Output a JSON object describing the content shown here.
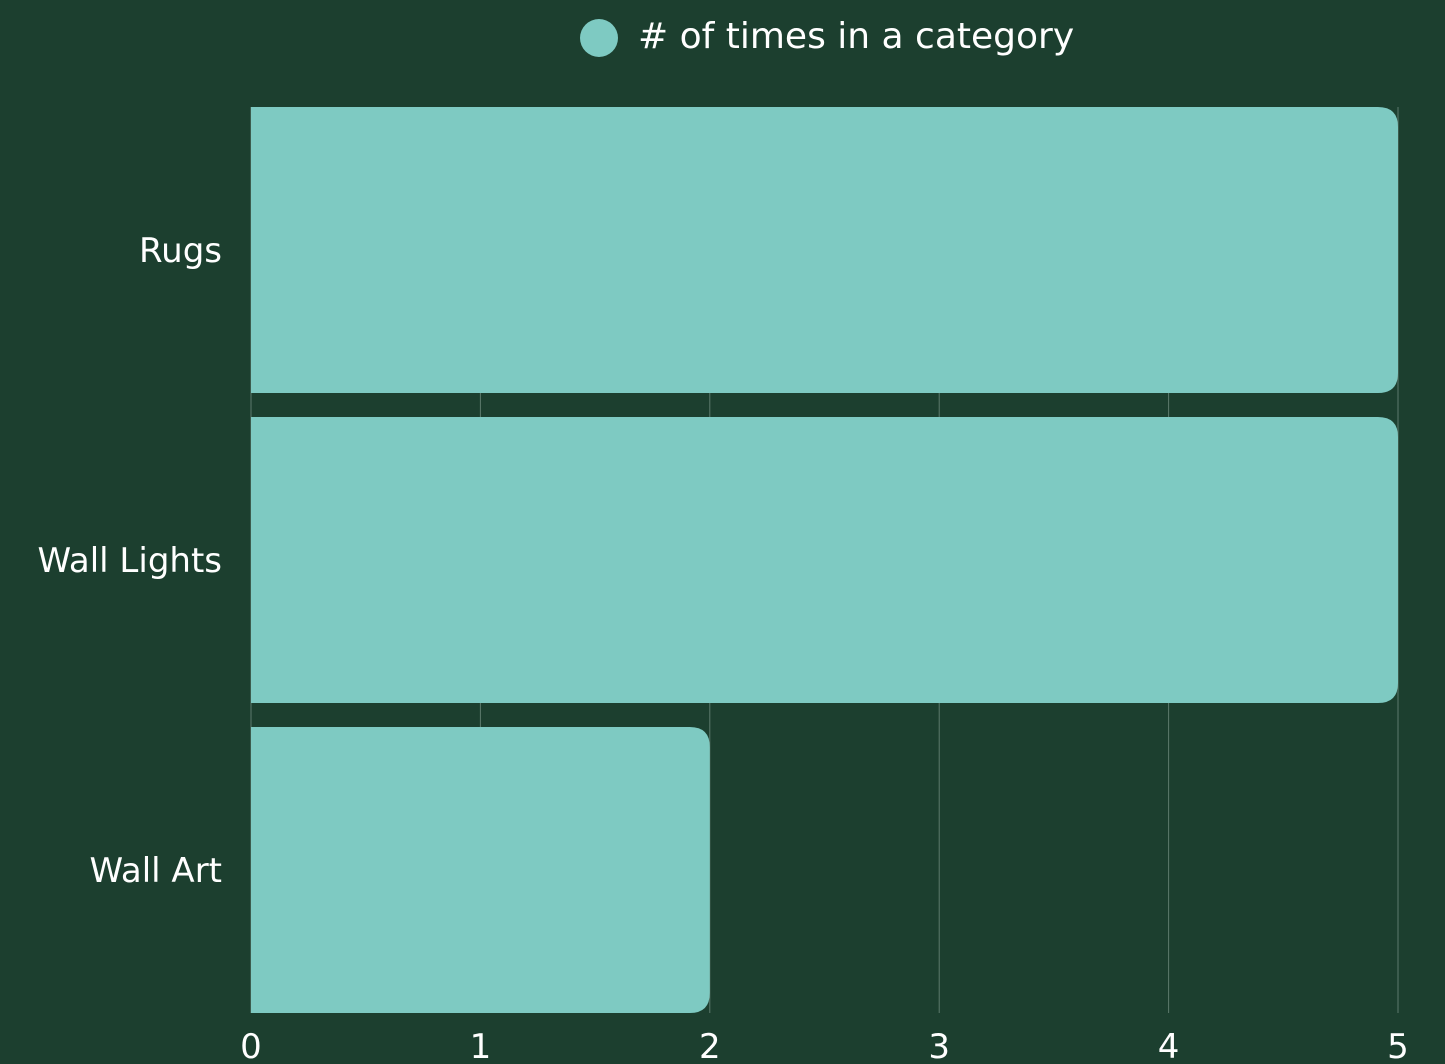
{
  "colors": {
    "background": "#1c3f2f",
    "bar": "#7ecac2",
    "grid": "#5d7a6c",
    "text": "#ffffff"
  },
  "chart_data": {
    "type": "bar",
    "orientation": "horizontal",
    "categories": [
      "Rugs",
      "Wall Lights",
      "Wall Art"
    ],
    "series": [
      {
        "name": "# of times in a category",
        "values": [
          5,
          5,
          2
        ]
      }
    ],
    "xlim": [
      0,
      5
    ],
    "x_ticks": [
      "0",
      "1",
      "2",
      "3",
      "4",
      "5"
    ],
    "grid": "vertical",
    "legend": "top-center"
  }
}
